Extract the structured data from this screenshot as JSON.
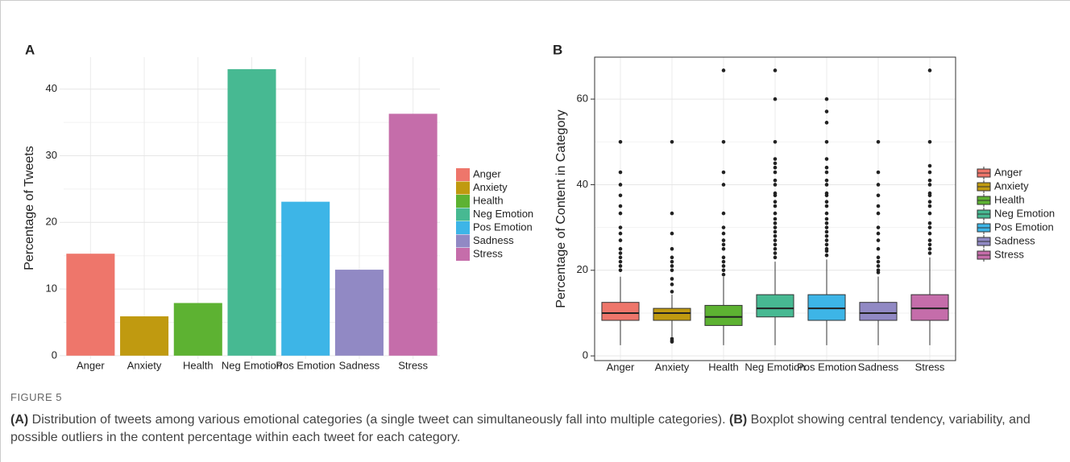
{
  "chart_data": [
    {
      "type": "bar",
      "panel": "A",
      "ylabel": "Percentage of Tweets",
      "categories": [
        "Anger",
        "Anxiety",
        "Health",
        "Neg Emotion",
        "Pos Emotion",
        "Sadness",
        "Stress"
      ],
      "values": [
        15.3,
        5.9,
        7.9,
        43,
        23.1,
        12.9,
        36.3
      ],
      "colors": [
        "#ee766b",
        "#c09a10",
        "#5db232",
        "#47b992",
        "#3db5e7",
        "#9189c4",
        "#c56daa"
      ],
      "ylim": [
        -0.5,
        44.8
      ],
      "yticks": [
        0,
        10,
        20,
        30,
        40
      ],
      "grid": true,
      "legend": "right"
    },
    {
      "type": "box",
      "panel": "B",
      "ylabel": "Percentage of Content in Category",
      "categories": [
        "Anger",
        "Anxiety",
        "Health",
        "Neg Emotion",
        "Pos Emotion",
        "Sadness",
        "Stress"
      ],
      "colors": [
        "#ee766b",
        "#c09a10",
        "#5db232",
        "#47b992",
        "#3db5e7",
        "#9189c4",
        "#c56daa"
      ],
      "boxes": [
        {
          "whisker_low": 2.5,
          "q1": 8.3,
          "median": 10,
          "q3": 12.5,
          "whisker_high": 18.5,
          "outliers": [
            20,
            21,
            22,
            23,
            24,
            25,
            27,
            28.6,
            30,
            33.3,
            35,
            37.5,
            40,
            42.9,
            50
          ]
        },
        {
          "whisker_low": 4.5,
          "q1": 8.3,
          "median": 10,
          "q3": 11.1,
          "whisker_high": 14.3,
          "outliers": [
            3.3,
            3.6,
            4,
            15,
            16.7,
            18,
            20,
            21,
            22,
            23,
            25,
            28.6,
            33.3,
            50
          ]
        },
        {
          "whisker_low": 2.5,
          "q1": 7.1,
          "median": 9.1,
          "q3": 11.8,
          "whisker_high": 18.5,
          "outliers": [
            19,
            20,
            21,
            22,
            23,
            25,
            26,
            27,
            28.6,
            30,
            33.3,
            40,
            42.9,
            50,
            66.7
          ]
        },
        {
          "whisker_low": 2.5,
          "q1": 9.1,
          "median": 11.1,
          "q3": 14.3,
          "whisker_high": 22,
          "outliers": [
            23,
            24,
            25,
            26,
            27,
            28,
            29,
            30,
            31,
            32,
            33.3,
            35,
            36,
            37.5,
            38,
            40,
            41,
            42.9,
            44,
            45,
            46,
            50,
            60,
            66.7
          ]
        },
        {
          "whisker_low": 2.5,
          "q1": 8.3,
          "median": 11.1,
          "q3": 14.3,
          "whisker_high": 22.5,
          "outliers": [
            23.5,
            24.5,
            25,
            26,
            27,
            28,
            29,
            30,
            31,
            32,
            33.3,
            35,
            36,
            37.5,
            38,
            40,
            41,
            42.9,
            44,
            46,
            50,
            54.5,
            57.1,
            60
          ]
        },
        {
          "whisker_low": 2.5,
          "q1": 8.3,
          "median": 10,
          "q3": 12.5,
          "whisker_high": 18.5,
          "outliers": [
            19.5,
            20,
            21,
            22,
            23,
            25,
            27,
            28.6,
            30,
            33.3,
            35,
            37.5,
            40,
            42.9,
            50
          ]
        },
        {
          "whisker_low": 2.5,
          "q1": 8.3,
          "median": 11.1,
          "q3": 14.3,
          "whisker_high": 23,
          "outliers": [
            24,
            25,
            26,
            27,
            28.6,
            30,
            31,
            33.3,
            35,
            36,
            37.5,
            38,
            40,
            41,
            42.9,
            44.4,
            50,
            66.7
          ]
        }
      ],
      "ylim": [
        -1.1,
        69.8
      ],
      "yticks": [
        0,
        20,
        40,
        60
      ],
      "grid": true,
      "legend": "right"
    }
  ],
  "figure": {
    "label": "FIGURE 5",
    "caption_a_tag": "(A)",
    "caption_a": "Distribution of tweets among various emotional categories (a single tweet can simultaneously fall into multiple categories).",
    "caption_b_tag": "(B)",
    "caption_b": "Boxplot showing central tendency, variability, and possible outliers in the content percentage within each tweet for each category."
  }
}
